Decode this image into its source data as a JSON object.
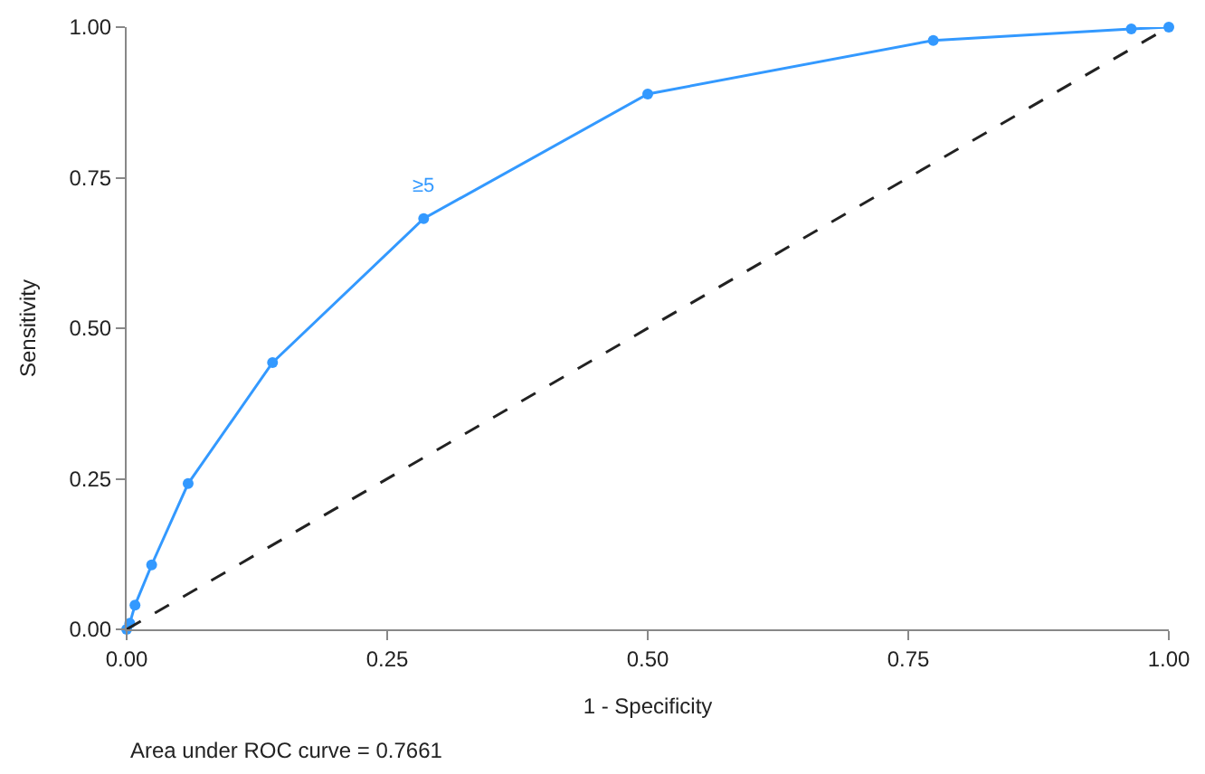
{
  "chart_data": {
    "type": "line",
    "xlabel": "1 - Specificity",
    "ylabel": "Sensitivity",
    "xlim": [
      0,
      1
    ],
    "ylim": [
      0,
      1
    ],
    "xticks": [
      {
        "value": 0,
        "label": "0.00"
      },
      0.25,
      {
        "value": 0.5,
        "label": "0.50"
      },
      0.75,
      {
        "value": 1,
        "label": "1.00"
      }
    ],
    "yticks": [
      {
        "value": 0,
        "label": "0.00"
      },
      0.25,
      {
        "value": 0.5,
        "label": "0.50"
      },
      0.75,
      {
        "value": 1,
        "label": "1.00"
      }
    ],
    "series": [
      {
        "color": "#3399ff",
        "marker": "circle",
        "line_style": "solid",
        "x": [
          0,
          0.003,
          0.008,
          0.024,
          0.059,
          0.14,
          0.285,
          0.5,
          0.774,
          0.964,
          1
        ],
        "values": [
          0,
          0.01,
          0.04,
          0.107,
          0.242,
          0.443,
          0.682,
          0.889,
          0.978,
          0.997,
          1
        ]
      },
      {
        "color": "#222222",
        "marker": "none",
        "line_style": "dashed",
        "x": [
          0,
          1
        ],
        "values": [
          0,
          1
        ]
      }
    ],
    "annotations": [
      {
        "text": "≥5",
        "x": 0.285,
        "y": 0.682
      },
      "Area under ROC curve = 0.7661"
    ]
  }
}
